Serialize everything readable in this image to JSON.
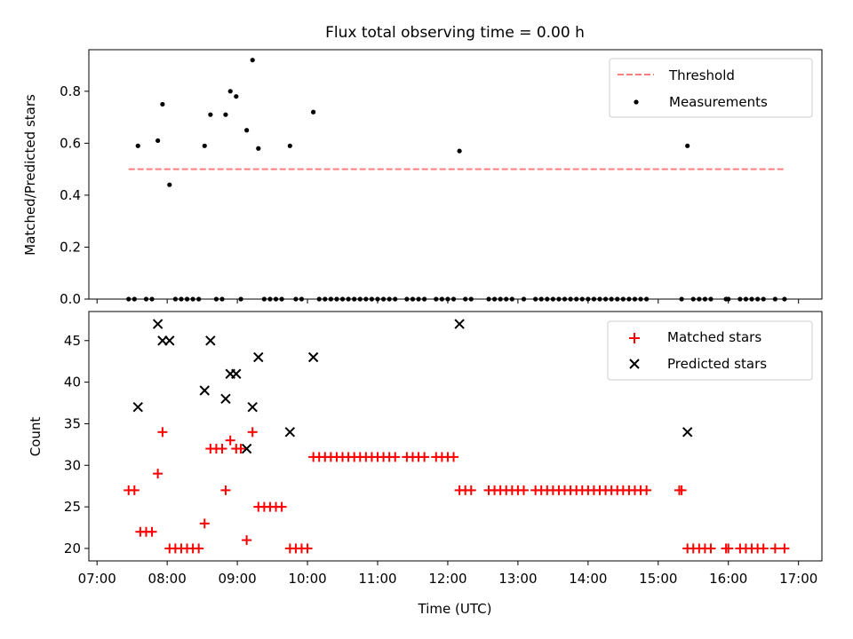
{
  "title": "Flux total observing time = 0.00 h",
  "chart_data": [
    {
      "type": "scatter",
      "title": "Flux total observing time = 0.00 h",
      "ylabel": "Matched/Predicted stars",
      "xlabel": "",
      "xlim": [
        "06:53",
        "17:20"
      ],
      "ylim": [
        0,
        0.96
      ],
      "yticks": [
        "0.0",
        "0.2",
        "0.4",
        "0.6",
        "0.8"
      ],
      "legend_placement": "top-right",
      "threshold": {
        "name": "Threshold",
        "value": 0.5,
        "x_range": [
          "07:27",
          "16:48"
        ],
        "color": "#ff7f7f"
      },
      "series": [
        {
          "name": "Measurements",
          "color": "#000000",
          "points": [
            [
              "07:35",
              0.59
            ],
            [
              "07:52",
              0.61
            ],
            [
              "07:56",
              0.75
            ],
            [
              "08:02",
              0.44
            ],
            [
              "08:32",
              0.59
            ],
            [
              "08:37",
              0.71
            ],
            [
              "08:50",
              0.71
            ],
            [
              "08:54",
              0.8
            ],
            [
              "08:59",
              0.78
            ],
            [
              "09:08",
              0.65
            ],
            [
              "09:13",
              0.92
            ],
            [
              "09:18",
              0.58
            ],
            [
              "09:45",
              0.59
            ],
            [
              "10:05",
              0.72
            ],
            [
              "12:10",
              0.57
            ],
            [
              "15:25",
              0.59
            ],
            [
              "07:27",
              0
            ],
            [
              "07:32",
              0
            ],
            [
              "07:42",
              0
            ],
            [
              "07:47",
              0
            ],
            [
              "08:07",
              0
            ],
            [
              "08:12",
              0
            ],
            [
              "08:17",
              0
            ],
            [
              "08:22",
              0
            ],
            [
              "08:27",
              0
            ],
            [
              "08:42",
              0
            ],
            [
              "08:47",
              0
            ],
            [
              "09:03",
              0
            ],
            [
              "09:23",
              0
            ],
            [
              "09:28",
              0
            ],
            [
              "09:33",
              0
            ],
            [
              "09:38",
              0
            ],
            [
              "09:50",
              0
            ],
            [
              "09:55",
              0
            ],
            [
              "10:10",
              0
            ],
            [
              "10:15",
              0
            ],
            [
              "10:20",
              0
            ],
            [
              "10:25",
              0
            ],
            [
              "10:30",
              0
            ],
            [
              "10:35",
              0
            ],
            [
              "10:40",
              0
            ],
            [
              "10:45",
              0
            ],
            [
              "10:50",
              0
            ],
            [
              "10:55",
              0
            ],
            [
              "11:00",
              0
            ],
            [
              "11:05",
              0
            ],
            [
              "11:10",
              0
            ],
            [
              "11:15",
              0
            ],
            [
              "11:25",
              0
            ],
            [
              "11:30",
              0
            ],
            [
              "11:35",
              0
            ],
            [
              "11:40",
              0
            ],
            [
              "11:50",
              0
            ],
            [
              "11:55",
              0
            ],
            [
              "12:00",
              0
            ],
            [
              "12:05",
              0
            ],
            [
              "12:15",
              0
            ],
            [
              "12:20",
              0
            ],
            [
              "12:35",
              0
            ],
            [
              "12:40",
              0
            ],
            [
              "12:45",
              0
            ],
            [
              "12:50",
              0
            ],
            [
              "12:55",
              0
            ],
            [
              "13:05",
              0
            ],
            [
              "13:15",
              0
            ],
            [
              "13:20",
              0
            ],
            [
              "13:25",
              0
            ],
            [
              "13:30",
              0
            ],
            [
              "13:35",
              0
            ],
            [
              "13:40",
              0
            ],
            [
              "13:45",
              0
            ],
            [
              "13:50",
              0
            ],
            [
              "13:55",
              0
            ],
            [
              "14:00",
              0
            ],
            [
              "14:05",
              0
            ],
            [
              "14:10",
              0
            ],
            [
              "14:15",
              0
            ],
            [
              "14:20",
              0
            ],
            [
              "14:25",
              0
            ],
            [
              "14:30",
              0
            ],
            [
              "14:35",
              0
            ],
            [
              "14:40",
              0
            ],
            [
              "14:45",
              0
            ],
            [
              "14:50",
              0
            ],
            [
              "15:20",
              0
            ],
            [
              "15:30",
              0
            ],
            [
              "15:35",
              0
            ],
            [
              "15:40",
              0
            ],
            [
              "15:45",
              0
            ],
            [
              "15:58",
              0
            ],
            [
              "16:00",
              0
            ],
            [
              "16:10",
              0
            ],
            [
              "16:15",
              0
            ],
            [
              "16:20",
              0
            ],
            [
              "16:25",
              0
            ],
            [
              "16:30",
              0
            ],
            [
              "16:40",
              0
            ],
            [
              "16:48",
              0
            ]
          ]
        }
      ]
    },
    {
      "type": "scatter",
      "title": "",
      "ylabel": "Count",
      "xlabel": "Time (UTC)",
      "xlim": [
        "06:53",
        "17:20"
      ],
      "ylim": [
        18.5,
        48.5
      ],
      "yticks": [
        "20",
        "25",
        "30",
        "35",
        "40",
        "45"
      ],
      "xticks": [
        "07:00",
        "08:00",
        "09:00",
        "10:00",
        "11:00",
        "12:00",
        "13:00",
        "14:00",
        "15:00",
        "16:00",
        "17:00"
      ],
      "legend_placement": "top-right",
      "series": [
        {
          "name": "Matched stars",
          "marker": "+",
          "color": "#ff0000",
          "points": [
            [
              "07:27",
              27
            ],
            [
              "07:32",
              27
            ],
            [
              "07:37",
              22
            ],
            [
              "07:42",
              22
            ],
            [
              "07:47",
              22
            ],
            [
              "07:52",
              29
            ],
            [
              "07:56",
              34
            ],
            [
              "08:02",
              20
            ],
            [
              "08:07",
              20
            ],
            [
              "08:12",
              20
            ],
            [
              "08:17",
              20
            ],
            [
              "08:22",
              20
            ],
            [
              "08:27",
              20
            ],
            [
              "08:32",
              23
            ],
            [
              "08:37",
              32
            ],
            [
              "08:42",
              32
            ],
            [
              "08:47",
              32
            ],
            [
              "08:50",
              27
            ],
            [
              "08:54",
              33
            ],
            [
              "08:59",
              32
            ],
            [
              "09:03",
              32
            ],
            [
              "09:08",
              21
            ],
            [
              "09:13",
              34
            ],
            [
              "09:18",
              25
            ],
            [
              "09:23",
              25
            ],
            [
              "09:28",
              25
            ],
            [
              "09:33",
              25
            ],
            [
              "09:38",
              25
            ],
            [
              "09:45",
              20
            ],
            [
              "09:50",
              20
            ],
            [
              "09:55",
              20
            ],
            [
              "10:00",
              20
            ],
            [
              "10:05",
              31
            ],
            [
              "10:10",
              31
            ],
            [
              "10:15",
              31
            ],
            [
              "10:20",
              31
            ],
            [
              "10:25",
              31
            ],
            [
              "10:30",
              31
            ],
            [
              "10:35",
              31
            ],
            [
              "10:40",
              31
            ],
            [
              "10:45",
              31
            ],
            [
              "10:50",
              31
            ],
            [
              "10:55",
              31
            ],
            [
              "11:00",
              31
            ],
            [
              "11:05",
              31
            ],
            [
              "11:10",
              31
            ],
            [
              "11:15",
              31
            ],
            [
              "11:25",
              31
            ],
            [
              "11:30",
              31
            ],
            [
              "11:35",
              31
            ],
            [
              "11:40",
              31
            ],
            [
              "11:50",
              31
            ],
            [
              "11:55",
              31
            ],
            [
              "12:00",
              31
            ],
            [
              "12:05",
              31
            ],
            [
              "12:10",
              27
            ],
            [
              "12:15",
              27
            ],
            [
              "12:20",
              27
            ],
            [
              "12:35",
              27
            ],
            [
              "12:40",
              27
            ],
            [
              "12:45",
              27
            ],
            [
              "12:50",
              27
            ],
            [
              "12:55",
              27
            ],
            [
              "13:00",
              27
            ],
            [
              "13:05",
              27
            ],
            [
              "13:15",
              27
            ],
            [
              "13:20",
              27
            ],
            [
              "13:25",
              27
            ],
            [
              "13:30",
              27
            ],
            [
              "13:35",
              27
            ],
            [
              "13:40",
              27
            ],
            [
              "13:45",
              27
            ],
            [
              "13:50",
              27
            ],
            [
              "13:55",
              27
            ],
            [
              "14:00",
              27
            ],
            [
              "14:05",
              27
            ],
            [
              "14:10",
              27
            ],
            [
              "14:15",
              27
            ],
            [
              "14:20",
              27
            ],
            [
              "14:25",
              27
            ],
            [
              "14:30",
              27
            ],
            [
              "14:35",
              27
            ],
            [
              "14:40",
              27
            ],
            [
              "14:45",
              27
            ],
            [
              "14:50",
              27
            ],
            [
              "15:18",
              27
            ],
            [
              "15:20",
              27
            ],
            [
              "15:25",
              20
            ],
            [
              "15:30",
              20
            ],
            [
              "15:35",
              20
            ],
            [
              "15:40",
              20
            ],
            [
              "15:45",
              20
            ],
            [
              "15:58",
              20
            ],
            [
              "16:00",
              20
            ],
            [
              "16:10",
              20
            ],
            [
              "16:15",
              20
            ],
            [
              "16:20",
              20
            ],
            [
              "16:25",
              20
            ],
            [
              "16:30",
              20
            ],
            [
              "16:40",
              20
            ],
            [
              "16:48",
              20
            ]
          ]
        },
        {
          "name": "Predicted stars",
          "marker": "x",
          "color": "#000000",
          "points": [
            [
              "07:35",
              37
            ],
            [
              "07:52",
              47
            ],
            [
              "07:56",
              45
            ],
            [
              "08:02",
              45
            ],
            [
              "08:32",
              39
            ],
            [
              "08:37",
              45
            ],
            [
              "08:50",
              38
            ],
            [
              "08:54",
              41
            ],
            [
              "08:59",
              41
            ],
            [
              "09:08",
              32
            ],
            [
              "09:13",
              37
            ],
            [
              "09:18",
              43
            ],
            [
              "09:45",
              34
            ],
            [
              "10:05",
              43
            ],
            [
              "12:10",
              47
            ],
            [
              "15:25",
              34
            ]
          ]
        }
      ]
    }
  ]
}
